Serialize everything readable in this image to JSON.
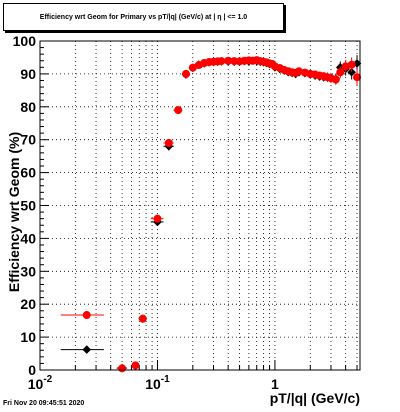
{
  "header": {
    "title": "Efficiency wrt Geom for Primary vs pT/|q| (GeV/c) at | η | <= 1.0"
  },
  "footer": {
    "timestamp": "Fri Nov 20 09:45:51 2020"
  },
  "chart_data": {
    "type": "scatter",
    "title": "Efficiency wrt Geom for Primary vs pT/|q| (GeV/c) at | η | <= 1.0",
    "xlabel": "pT/|q| (GeV/c)",
    "ylabel": "Efficiency wrt Geom (%)",
    "xscale": "log",
    "xlim": [
      0.01,
      5.3
    ],
    "ylim": [
      0,
      100
    ],
    "yticks": [
      0,
      10,
      20,
      30,
      40,
      50,
      60,
      70,
      80,
      90,
      100
    ],
    "xtick_labels": [
      {
        "value": 0.01,
        "base": "10",
        "exp": "-2"
      },
      {
        "value": 0.1,
        "base": "10",
        "exp": "-1"
      },
      {
        "value": 1,
        "base": "1",
        "exp": ""
      }
    ],
    "grid": true,
    "series": [
      {
        "color": "#000000",
        "marker": "diamond",
        "x": [
          0.025,
          0.05,
          0.065,
          0.075,
          0.1,
          0.125,
          0.15,
          0.175,
          0.2,
          0.225,
          0.25,
          0.275,
          0.3,
          0.325,
          0.35,
          0.4,
          0.45,
          0.5,
          0.55,
          0.6,
          0.65,
          0.7,
          0.75,
          0.8,
          0.85,
          0.9,
          0.95,
          1.0,
          1.1,
          1.2,
          1.3,
          1.4,
          1.5,
          1.6,
          1.8,
          2.0,
          2.2,
          2.4,
          2.6,
          2.8,
          3.0,
          3.3,
          3.6,
          4.0,
          4.5,
          5.0
        ],
        "y": [
          6.2,
          0.6,
          1.3,
          15.6,
          45.0,
          68.0,
          79.0,
          89.8,
          91.8,
          92.8,
          93.2,
          93.5,
          93.6,
          93.7,
          93.8,
          93.8,
          93.7,
          93.8,
          93.9,
          93.8,
          94.0,
          93.9,
          93.7,
          93.5,
          93.3,
          93.0,
          92.8,
          92.0,
          91.5,
          91.0,
          90.5,
          90.3,
          90.0,
          90.5,
          90.2,
          89.8,
          89.5,
          89.2,
          89.0,
          89.0,
          88.8,
          88.5,
          92.0,
          91.5,
          90.5,
          93.2
        ],
        "xerr": [
          0.01,
          0.005,
          0.005,
          0.005,
          0.0125,
          0.0125,
          0.0125,
          0.0125,
          0.0125,
          0.0125,
          0.0125,
          0.0125,
          0.0125,
          0.0125,
          0.0125,
          0.025,
          0.025,
          0.025,
          0.025,
          0.025,
          0.025,
          0.025,
          0.025,
          0.025,
          0.025,
          0.025,
          0.025,
          0.05,
          0.05,
          0.05,
          0.05,
          0.05,
          0.05,
          0.05,
          0.1,
          0.1,
          0.1,
          0.1,
          0.1,
          0.1,
          0.1,
          0.15,
          0.15,
          0.2,
          0.25,
          0.25
        ],
        "yerr": [
          0.8,
          0.4,
          0.5,
          1.0,
          1.2,
          1.2,
          1.0,
          0.8,
          0.6,
          0.5,
          0.5,
          0.5,
          0.5,
          0.5,
          0.5,
          0.5,
          0.5,
          0.5,
          0.5,
          0.5,
          0.5,
          0.5,
          0.5,
          0.5,
          0.5,
          0.6,
          0.6,
          0.6,
          0.7,
          0.7,
          0.8,
          0.8,
          0.9,
          0.9,
          1.0,
          1.0,
          1.2,
          1.2,
          1.3,
          1.4,
          1.5,
          1.6,
          1.8,
          2.0,
          2.2,
          2.5
        ]
      },
      {
        "color": "#ff0000",
        "marker": "circle",
        "x": [
          0.025,
          0.05,
          0.065,
          0.075,
          0.1,
          0.125,
          0.15,
          0.175,
          0.2,
          0.225,
          0.25,
          0.275,
          0.3,
          0.325,
          0.35,
          0.4,
          0.45,
          0.5,
          0.55,
          0.6,
          0.65,
          0.7,
          0.75,
          0.8,
          0.85,
          0.9,
          0.95,
          1.0,
          1.1,
          1.2,
          1.3,
          1.4,
          1.5,
          1.6,
          1.8,
          2.0,
          2.2,
          2.4,
          2.6,
          2.8,
          3.0,
          3.3,
          3.6,
          4.0,
          4.5,
          5.0
        ],
        "y": [
          16.7,
          0.5,
          1.4,
          15.6,
          46.0,
          69.0,
          79.0,
          90.0,
          91.9,
          92.7,
          93.3,
          93.6,
          93.7,
          93.8,
          93.9,
          94.0,
          93.9,
          93.8,
          94.0,
          94.1,
          94.0,
          94.2,
          93.9,
          93.7,
          93.5,
          93.2,
          93.0,
          92.3,
          91.8,
          91.2,
          90.8,
          90.5,
          90.3,
          90.8,
          90.4,
          90.0,
          89.8,
          89.5,
          89.3,
          89.0,
          88.7,
          88.3,
          90.5,
          92.3,
          92.8,
          89.0
        ],
        "xerr": [
          0.01,
          0.005,
          0.005,
          0.005,
          0.0125,
          0.0125,
          0.0125,
          0.0125,
          0.0125,
          0.0125,
          0.0125,
          0.0125,
          0.0125,
          0.0125,
          0.0125,
          0.025,
          0.025,
          0.025,
          0.025,
          0.025,
          0.025,
          0.025,
          0.025,
          0.025,
          0.025,
          0.025,
          0.025,
          0.05,
          0.05,
          0.05,
          0.05,
          0.05,
          0.05,
          0.05,
          0.1,
          0.1,
          0.1,
          0.1,
          0.1,
          0.1,
          0.1,
          0.15,
          0.15,
          0.2,
          0.25,
          0.25
        ],
        "yerr": [
          1.2,
          0.4,
          0.5,
          1.0,
          1.2,
          1.2,
          1.0,
          0.8,
          0.6,
          0.5,
          0.5,
          0.5,
          0.5,
          0.5,
          0.5,
          0.5,
          0.5,
          0.5,
          0.5,
          0.5,
          0.5,
          0.5,
          0.5,
          0.5,
          0.5,
          0.6,
          0.6,
          0.6,
          0.7,
          0.7,
          0.8,
          0.8,
          0.9,
          0.9,
          1.0,
          1.0,
          1.2,
          1.2,
          1.3,
          1.4,
          1.5,
          1.6,
          1.8,
          2.0,
          2.2,
          2.5
        ]
      }
    ]
  }
}
